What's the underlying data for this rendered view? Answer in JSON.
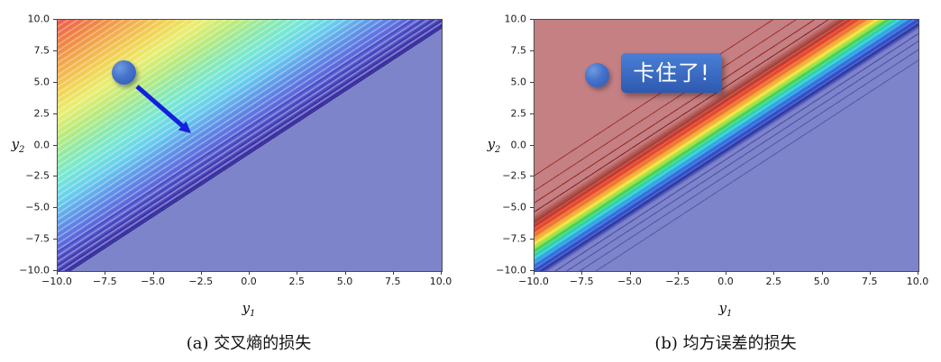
{
  "figure": {
    "left_plot": {
      "caption": "(a) 交叉熵的损失",
      "xlabel_base": "y",
      "xlabel_sub": "1",
      "ylabel_base": "y",
      "ylabel_sub": "2",
      "x_ticks": [
        "−10.0",
        "−7.5",
        "−5.0",
        "−2.5",
        "0.0",
        "2.5",
        "5.0",
        "7.5",
        "10.0"
      ],
      "y_ticks": [
        "10.0",
        "7.5",
        "5.0",
        "2.5",
        "0.0",
        "−2.5",
        "−5.0",
        "−7.5",
        "−10.0"
      ]
    },
    "right_plot": {
      "caption": "(b) 均方误差的损失",
      "annotation": "卡住了!",
      "xlabel_base": "y",
      "xlabel_sub": "1",
      "ylabel_base": "y",
      "ylabel_sub": "2",
      "x_ticks": [
        "−10.0",
        "−7.5",
        "−5.0",
        "−2.5",
        "0.0",
        "2.5",
        "5.0",
        "7.5",
        "10.0"
      ],
      "y_ticks": [
        "10.0",
        "7.5",
        "5.0",
        "2.5",
        "0.0",
        "−2.5",
        "−5.0",
        "−7.5",
        "−10.0"
      ]
    }
  },
  "colors": {
    "flat_low_region": "#7e84c9",
    "flat_high_region": "#c48083",
    "dot_fill": "#3a68c4",
    "arrow": "#1420dc",
    "annotation_box": "#3565c2",
    "annotation_text": "#ffffff",
    "axes_frame": "#4c4c4c"
  },
  "chart_data": [
    {
      "type": "heatmap",
      "subtype": "filled-contour",
      "title": "(a) 交叉熵的损失",
      "xlabel": "y1",
      "ylabel": "y2",
      "xlim": [
        -10,
        10
      ],
      "ylim": [
        -10,
        10
      ],
      "x_ticks": [
        -10.0,
        -7.5,
        -5.0,
        -2.5,
        0.0,
        2.5,
        5.0,
        7.5,
        10.0
      ],
      "y_ticks": [
        10.0,
        7.5,
        5.0,
        2.5,
        0.0,
        -2.5,
        -5.0,
        -7.5,
        -10.0
      ],
      "colormap": "jet with light striped contour bands (red = high loss, blue = low loss)",
      "value_description": "Cross-entropy loss depends on y2 - y1; maximum (red) at top-left corner (y1=-10, y2=10); smoothly decreases through orange/yellow/green/cyan/blue toward the diagonal; flat minimum plateau (periwinkle #7e84c9) below the diagonal y2 ≈ y1, with contour-line spacing increasing away from the diagonal",
      "contour_lines": "many thin diagonal levels parallel to y2 = y1, densest near the diagonal",
      "grid": false,
      "legend": false,
      "annotations": [
        {
          "type": "point",
          "x": -6.5,
          "y": 5.8,
          "style": "blue ball marker"
        },
        {
          "type": "arrow",
          "from": [
            -5.9,
            4.7
          ],
          "to": [
            -3.0,
            1.0
          ],
          "style": "blue gradient-descent arrow pointing down-slope toward the diagonal"
        }
      ]
    },
    {
      "type": "heatmap",
      "subtype": "filled-contour",
      "title": "(b) 均方误差的损失",
      "xlabel": "y1",
      "ylabel": "y2",
      "xlim": [
        -10,
        10
      ],
      "ylim": [
        -10,
        10
      ],
      "x_ticks": [
        -10.0,
        -7.5,
        -5.0,
        -2.5,
        0.0,
        2.5,
        5.0,
        7.5,
        10.0
      ],
      "y_ticks": [
        10.0,
        7.5,
        5.0,
        2.5,
        0.0,
        -2.5,
        -5.0,
        -7.5,
        -10.0
      ],
      "colormap": "jet (red = high, blue = low)",
      "value_description": "Mean-squared-error loss is saturated: flat high plateau (brick red #c48083) for y2 > y1 + 4, a narrow rainbow gradient band (red→orange→yellow→green→cyan→blue) along the diagonal centered near y2 ≈ y1 + 1.8, and a flat low plateau (periwinkle #7e84c9) for y2 < y1; thin red contour lines above the band and thin blue contour lines below it, spacing increasing away from the band",
      "contour_lines": "sparse thin lines parallel to the diagonal in both plateaus; dense levels inside the band",
      "grid": false,
      "legend": false,
      "annotations": [
        {
          "type": "point",
          "x": -6.7,
          "y": 5.6,
          "style": "blue ball marker stuck on the flat plateau"
        },
        {
          "type": "label",
          "text": "卡住了!",
          "x": -2.9,
          "y": 5.8,
          "style": "white text in blue rounded box"
        }
      ]
    }
  ]
}
